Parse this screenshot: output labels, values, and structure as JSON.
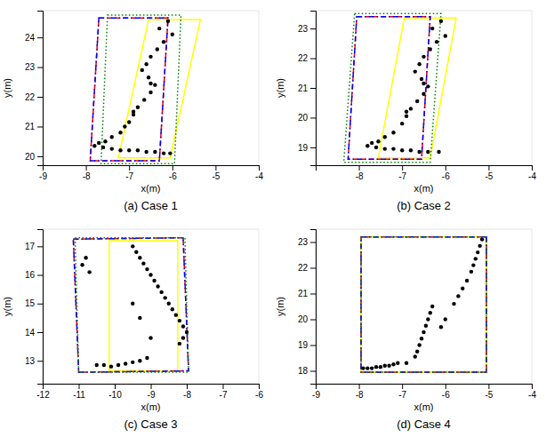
{
  "chart_data": [
    {
      "type": "scatter",
      "title": "(a) Case 1",
      "xlabel": "x(m)",
      "ylabel": "y(m)",
      "xlim": [
        -9,
        -4
      ],
      "ylim": [
        19.7,
        24.9
      ],
      "xticks": [
        -9,
        -8,
        -7,
        -6,
        -5,
        -4
      ],
      "yticks": [
        20,
        21,
        22,
        23,
        24
      ],
      "grid": false,
      "series": [
        {
          "type": "line",
          "color": "yellow",
          "line_style": "solid",
          "x": [
            -6.55,
            -5.35,
            -6.05,
            -7.25
          ],
          "values": [
            24.6,
            24.6,
            19.95,
            19.95
          ]
        },
        {
          "type": "line",
          "color": "red",
          "line_style": "dashed",
          "x": [
            -7.7,
            -6.1,
            -6.3,
            -7.9
          ],
          "values": [
            24.65,
            24.65,
            19.85,
            19.85
          ]
        },
        {
          "type": "line",
          "color": "blue",
          "line_style": "dashdot",
          "x": [
            -7.7,
            -6.1,
            -6.3,
            -7.9
          ],
          "values": [
            24.65,
            24.65,
            19.85,
            19.85
          ]
        },
        {
          "type": "line",
          "color": "green",
          "line_style": "dotted",
          "x": [
            -7.5,
            -5.8,
            -5.95,
            -7.65
          ],
          "values": [
            24.75,
            24.75,
            19.75,
            19.75
          ]
        },
        {
          "type": "scatter",
          "color": "black",
          "marker": "circle",
          "x": [
            -6.1,
            -6.3,
            -6.0,
            -6.2,
            -6.35,
            -6.5,
            -6.6,
            -6.7,
            -6.55,
            -6.4,
            -6.5,
            -6.65,
            -6.8,
            -6.9,
            -7.0,
            -7.2,
            -7.4,
            -7.55,
            -7.7,
            -7.8,
            -7.6,
            -7.4,
            -7.2,
            -7.0,
            -6.8,
            -6.6,
            -6.4,
            -6.2,
            -6.05,
            -6.5,
            -6.9,
            -7.1
          ],
          "values": [
            24.55,
            24.3,
            24.1,
            23.85,
            23.6,
            23.35,
            23.1,
            22.9,
            22.65,
            22.4,
            22.15,
            21.9,
            21.65,
            21.4,
            21.15,
            20.8,
            20.65,
            20.5,
            20.45,
            20.35,
            20.3,
            20.25,
            20.2,
            20.2,
            20.2,
            20.15,
            20.15,
            20.1,
            20.1,
            22.45,
            21.5,
            21.0
          ]
        }
      ]
    },
    {
      "type": "scatter",
      "title": "(b) Case 2",
      "xlabel": "x(m)",
      "ylabel": "y(m)",
      "xlim": [
        -9,
        -4
      ],
      "ylim": [
        18.4,
        23.6
      ],
      "xticks": [
        -8,
        -7,
        -6,
        -5,
        -4
      ],
      "yticks": [
        19,
        20,
        21,
        22,
        23
      ],
      "grid": false,
      "series": [
        {
          "type": "line",
          "color": "yellow",
          "line_style": "solid",
          "x": [
            -6.95,
            -5.75,
            -6.35,
            -7.55
          ],
          "values": [
            23.35,
            23.35,
            18.65,
            18.65
          ]
        },
        {
          "type": "line",
          "color": "red",
          "line_style": "dashed",
          "x": [
            -8.05,
            -6.35,
            -6.55,
            -8.25
          ],
          "values": [
            23.4,
            23.4,
            18.6,
            18.6
          ]
        },
        {
          "type": "line",
          "color": "blue",
          "line_style": "dashdot",
          "x": [
            -8.05,
            -6.35,
            -6.55,
            -8.25
          ],
          "values": [
            23.4,
            23.4,
            18.6,
            18.6
          ]
        },
        {
          "type": "line",
          "color": "green",
          "line_style": "dotted",
          "x": [
            -8.1,
            -6.1,
            -6.35,
            -8.35
          ],
          "values": [
            23.5,
            23.5,
            18.5,
            18.5
          ]
        },
        {
          "type": "scatter",
          "color": "black",
          "marker": "circle",
          "x": [
            -6.1,
            -6.3,
            -6.0,
            -6.2,
            -6.35,
            -6.5,
            -6.6,
            -6.7,
            -6.55,
            -6.4,
            -6.5,
            -6.65,
            -6.8,
            -6.9,
            -7.0,
            -7.2,
            -7.4,
            -7.55,
            -7.7,
            -7.8,
            -7.6,
            -7.4,
            -7.2,
            -7.0,
            -6.8,
            -6.6,
            -6.4,
            -6.15,
            -6.5,
            -6.9
          ],
          "values": [
            23.25,
            23.0,
            22.75,
            22.55,
            22.3,
            22.05,
            21.8,
            21.55,
            21.3,
            21.05,
            20.8,
            20.55,
            20.3,
            20.05,
            19.8,
            19.5,
            19.35,
            19.2,
            19.15,
            19.05,
            19.0,
            18.95,
            18.95,
            18.9,
            18.9,
            18.85,
            18.85,
            18.85,
            21.15,
            20.2
          ]
        }
      ]
    },
    {
      "type": "scatter",
      "title": "(c) Case 3",
      "xlabel": "x(m)",
      "ylabel": "y(m)",
      "xlim": [
        -12,
        -6
      ],
      "ylim": [
        12.2,
        17.6
      ],
      "xticks": [
        -12,
        -11,
        -10,
        -9,
        -8,
        -7,
        -6
      ],
      "yticks": [
        13,
        14,
        15,
        16,
        17
      ],
      "grid": false,
      "series": [
        {
          "type": "line",
          "color": "yellow",
          "line_style": "solid",
          "x": [
            -10.15,
            -8.25,
            -8.25,
            -10.15
          ],
          "values": [
            17.2,
            17.2,
            12.65,
            12.65
          ]
        },
        {
          "type": "line",
          "color": "red",
          "line_style": "dashed",
          "x": [
            -11.15,
            -8.1,
            -7.95,
            -11.0
          ],
          "values": [
            17.25,
            17.3,
            12.65,
            12.6
          ]
        },
        {
          "type": "line",
          "color": "blue",
          "line_style": "dashdot",
          "x": [
            -11.15,
            -8.1,
            -7.95,
            -11.0
          ],
          "values": [
            17.25,
            17.3,
            12.65,
            12.6
          ]
        },
        {
          "type": "line",
          "color": "green",
          "line_style": "dotted",
          "x": [
            -11.1,
            -8.05,
            -7.95,
            -11.0
          ],
          "values": [
            17.3,
            17.3,
            12.6,
            12.6
          ]
        },
        {
          "type": "scatter",
          "color": "black",
          "marker": "circle",
          "x": [
            -10.8,
            -10.9,
            -10.7,
            -9.5,
            -9.4,
            -9.3,
            -9.2,
            -9.1,
            -9.0,
            -8.9,
            -8.8,
            -8.7,
            -8.6,
            -8.5,
            -8.4,
            -8.3,
            -8.2,
            -8.1,
            -8.0,
            -8.1,
            -8.2,
            -9.1,
            -9.3,
            -9.5,
            -9.7,
            -9.9,
            -10.1,
            -10.3,
            -10.5,
            -9.5,
            -9.3,
            -9.0
          ],
          "values": [
            16.6,
            16.35,
            16.1,
            17.0,
            16.8,
            16.6,
            16.4,
            16.2,
            16.0,
            15.8,
            15.6,
            15.4,
            15.2,
            15.0,
            14.8,
            14.6,
            14.4,
            14.2,
            14.0,
            13.8,
            13.6,
            13.1,
            13.0,
            12.95,
            12.9,
            12.85,
            12.8,
            12.85,
            12.85,
            15.0,
            14.5,
            13.8
          ]
        }
      ]
    },
    {
      "type": "scatter",
      "title": "(d) Case 4",
      "xlabel": "x(m)",
      "ylabel": "y(m)",
      "xlim": [
        -9,
        -4
      ],
      "ylim": [
        17.5,
        23.5
      ],
      "xticks": [
        -9,
        -8,
        -7,
        -6,
        -5,
        -4
      ],
      "yticks": [
        18,
        19,
        20,
        21,
        22,
        23
      ],
      "grid": false,
      "series": [
        {
          "type": "line",
          "color": "yellow",
          "line_style": "solid",
          "x": [
            -5.05,
            -5.05,
            -7.95,
            -7.95
          ],
          "values": [
            23.2,
            17.95,
            17.95,
            23.2
          ]
        },
        {
          "type": "line",
          "color": "red",
          "line_style": "dashed",
          "x": [
            -5.05,
            -5.05,
            -7.95,
            -7.95
          ],
          "values": [
            23.2,
            17.95,
            17.95,
            23.2
          ]
        },
        {
          "type": "line",
          "color": "blue",
          "line_style": "dashdot",
          "x": [
            -5.05,
            -5.05,
            -7.95,
            -7.95
          ],
          "values": [
            23.2,
            17.95,
            17.95,
            23.2
          ]
        },
        {
          "type": "line",
          "color": "green",
          "line_style": "dotted",
          "x": [
            -5.05,
            -5.05,
            -7.95,
            -7.95
          ],
          "values": [
            23.2,
            17.95,
            17.95,
            23.2
          ]
        },
        {
          "type": "scatter",
          "color": "black",
          "marker": "circle",
          "x": [
            -5.15,
            -5.2,
            -5.25,
            -5.3,
            -5.35,
            -5.4,
            -5.5,
            -5.6,
            -5.7,
            -5.8,
            -6.0,
            -6.1,
            -6.3,
            -6.35,
            -6.4,
            -6.45,
            -6.5,
            -6.55,
            -6.6,
            -6.65,
            -6.7,
            -6.9,
            -7.1,
            -7.2,
            -7.3,
            -7.4,
            -7.5,
            -7.6,
            -7.7,
            -7.8,
            -7.9
          ],
          "values": [
            23.1,
            22.85,
            22.6,
            22.35,
            22.1,
            21.85,
            21.5,
            21.2,
            20.9,
            20.6,
            20.0,
            19.7,
            20.5,
            20.25,
            20.0,
            19.75,
            19.5,
            19.25,
            19.0,
            18.75,
            18.55,
            18.3,
            18.3,
            18.25,
            18.2,
            18.2,
            18.15,
            18.15,
            18.1,
            18.1,
            18.1
          ]
        }
      ]
    }
  ]
}
